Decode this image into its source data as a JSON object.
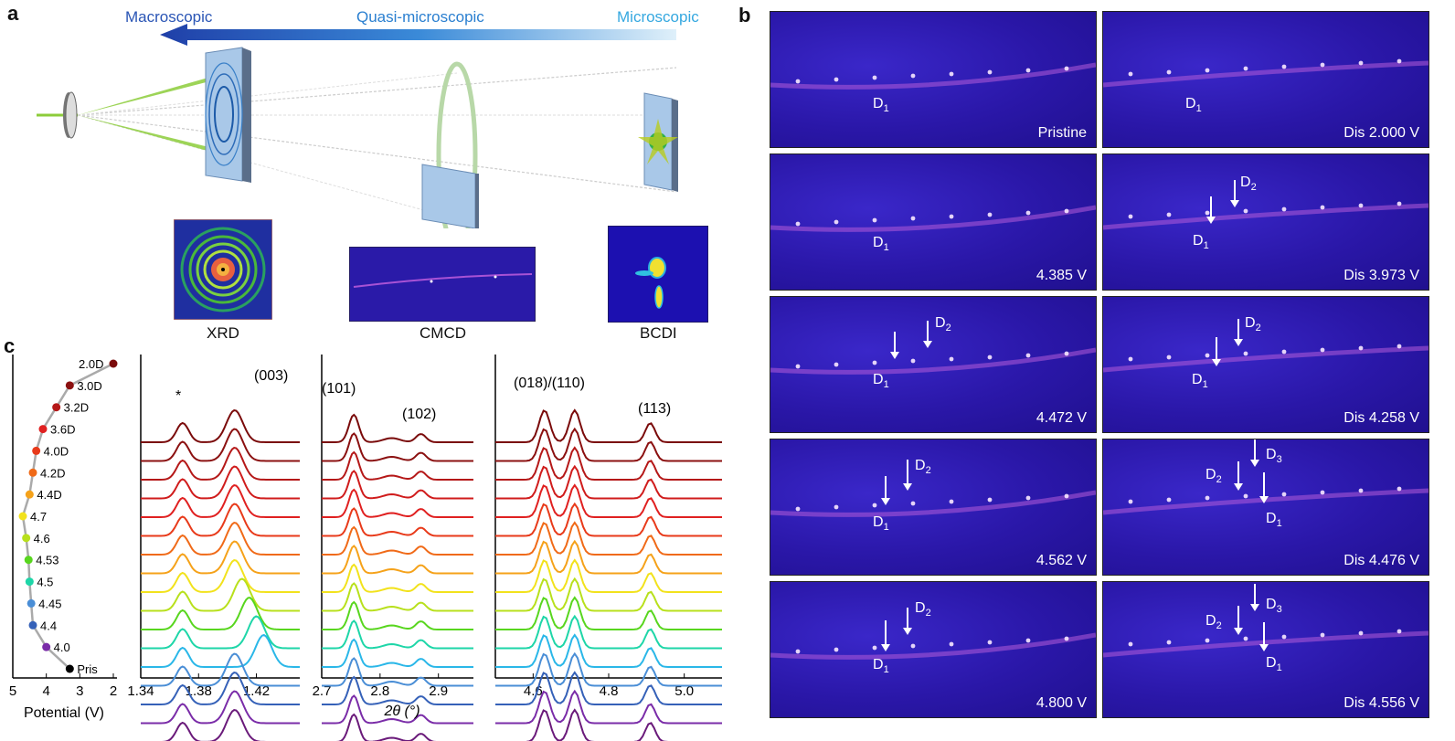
{
  "panel_labels": {
    "a": "a",
    "b": "b",
    "c": "c"
  },
  "panel_a": {
    "scale_labels": {
      "macro": "Macroscopic",
      "quasi": "Quasi-microscopic",
      "micro": "Microscopic"
    },
    "insets": {
      "xrd": "XRD",
      "cmcd": "CMCD",
      "bcdi": "BCDI"
    },
    "colors": {
      "arrow_dark": "#1f3fa8",
      "arrow_light": "#c9e6f7",
      "beam": "#8ccc3a"
    }
  },
  "panel_b": {
    "tiles": [
      {
        "caption": "Pristine",
        "labels": [
          {
            "t": "D",
            "s": "1"
          }
        ]
      },
      {
        "caption": "Dis 2.000 V",
        "labels": [
          {
            "t": "D",
            "s": "1"
          }
        ]
      },
      {
        "caption": "4.385 V",
        "labels": [
          {
            "t": "D",
            "s": "1"
          }
        ]
      },
      {
        "caption": "Dis 3.973 V",
        "labels": [
          {
            "t": "D",
            "s": "2"
          },
          {
            "t": "D",
            "s": "1"
          }
        ]
      },
      {
        "caption": "4.472 V",
        "labels": [
          {
            "t": "D",
            "s": "2"
          },
          {
            "t": "D",
            "s": "1"
          }
        ]
      },
      {
        "caption": "Dis 4.258 V",
        "labels": [
          {
            "t": "D",
            "s": "2"
          },
          {
            "t": "D",
            "s": "1"
          }
        ]
      },
      {
        "caption": "4.562 V",
        "labels": [
          {
            "t": "D",
            "s": "2"
          },
          {
            "t": "D",
            "s": "1"
          }
        ]
      },
      {
        "caption": "Dis 4.476 V",
        "labels": [
          {
            "t": "D",
            "s": "3"
          },
          {
            "t": "D",
            "s": "2"
          },
          {
            "t": "D",
            "s": "1"
          }
        ]
      },
      {
        "caption": "4.800 V",
        "labels": [
          {
            "t": "D",
            "s": "2"
          },
          {
            "t": "D",
            "s": "1"
          }
        ]
      },
      {
        "caption": "Dis 4.556 V",
        "labels": [
          {
            "t": "D",
            "s": "3"
          },
          {
            "t": "D",
            "s": "2"
          },
          {
            "t": "D",
            "s": "1"
          }
        ]
      }
    ]
  },
  "chart_data": [
    {
      "type": "scatter",
      "xlabel": "Potential (V)",
      "xticks": [
        "5",
        "4",
        "3",
        "2"
      ],
      "xlim": [
        5,
        2
      ],
      "points": [
        {
          "label": "2.0D",
          "potential": 2.0,
          "color": "#7a0a0a"
        },
        {
          "label": "3.0D",
          "potential": 3.3,
          "color": "#8b1010"
        },
        {
          "label": "3.2D",
          "potential": 3.7,
          "color": "#b51818"
        },
        {
          "label": "3.6D",
          "potential": 4.1,
          "color": "#e02020"
        },
        {
          "label": "4.0D",
          "potential": 4.3,
          "color": "#e83a1a"
        },
        {
          "label": "4.2D",
          "potential": 4.4,
          "color": "#f06a18"
        },
        {
          "label": "4.4D",
          "potential": 4.5,
          "color": "#f5a21a"
        },
        {
          "label": "4.7",
          "potential": 4.7,
          "color": "#f2e21c"
        },
        {
          "label": "4.6",
          "potential": 4.6,
          "color": "#b8e01c"
        },
        {
          "label": "4.53",
          "potential": 4.53,
          "color": "#58d61e"
        },
        {
          "label": "4.5",
          "potential": 4.5,
          "color": "#1ed6a8"
        },
        {
          "label": "4.45",
          "potential": 4.45,
          "color": "#4a8ed6"
        },
        {
          "label": "4.4",
          "potential": 4.4,
          "color": "#3561b8"
        },
        {
          "label": "4.0",
          "potential": 4.0,
          "color": "#7a2ca8"
        },
        {
          "label": "Pris",
          "potential": 3.3,
          "color": "#000000"
        }
      ]
    },
    {
      "type": "line",
      "xlabel": "2θ (°)",
      "panels": [
        {
          "xlim": [
            1.34,
            1.45
          ],
          "xticks": [
            "1.34",
            "1.38",
            "1.42"
          ],
          "annotations": [
            "*",
            "(003)"
          ]
        },
        {
          "xlim": [
            2.7,
            2.96
          ],
          "xticks": [
            "2.7",
            "2.8",
            "2.9"
          ],
          "annotations": [
            "(101)",
            "(102)"
          ]
        },
        {
          "xlim": [
            4.5,
            5.1
          ],
          "xticks": [
            "4.6",
            "4.8",
            "5.0"
          ],
          "annotations": [
            "(018)/(110)",
            "(113)"
          ]
        }
      ],
      "series_colors": [
        "#7a0a0a",
        "#8b1010",
        "#b51818",
        "#d01c1c",
        "#e02020",
        "#e83a1a",
        "#f06a18",
        "#f5a21a",
        "#f2e21c",
        "#b8e01c",
        "#58d61e",
        "#1ed6a8",
        "#2ab7e8",
        "#4a8ed6",
        "#3561b8",
        "#7a2ca8",
        "#6a1a7a"
      ]
    }
  ]
}
